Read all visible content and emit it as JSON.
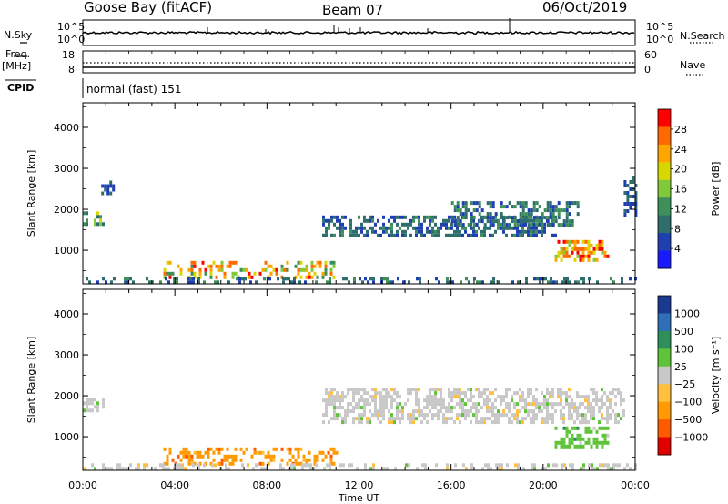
{
  "header": {
    "radar": "Goose Bay (fitACF)",
    "beam": "Beam 07",
    "date": "06/Oct/2019"
  },
  "strip": {
    "nsky_label": "N.Sky",
    "nsearch_label": "N.Search",
    "freq_label_1": "Freq.",
    "freq_label_2": "[MHz]",
    "nave_label": "Nave",
    "cpid_label": "CPID",
    "cpid_value": "normal (fast) 151",
    "nsky_ticks": [
      "10^5",
      "10^0"
    ],
    "nsearch_ticks": [
      "10^5",
      "10^0"
    ],
    "freq_ticks": [
      "18",
      "8"
    ],
    "nave_ticks": [
      "60",
      "0"
    ]
  },
  "colors": {
    "power": [
      "#1a1aff",
      "#1f3fb0",
      "#2e6f6e",
      "#3e8f5a",
      "#7fc93a",
      "#d8d800",
      "#ffa500",
      "#ff6a00",
      "#ff0000"
    ],
    "velocity": [
      "#1a3a8f",
      "#2e6fb5",
      "#2f8f5a",
      "#5fc43a",
      "#c8c8c8",
      "#ffc040",
      "#ff9a00",
      "#ff5a00",
      "#e00000"
    ]
  },
  "chart_data": [
    {
      "type": "heatmap",
      "name": "power",
      "ylabel": "Slant Range [km]",
      "ylim": [
        180,
        4600
      ],
      "yticks": [
        1000,
        2000,
        3000,
        4000
      ],
      "colorbar_label": "Power [dB]",
      "colorbar_ticks": [
        4,
        8,
        12,
        16,
        20,
        24,
        28
      ],
      "colorbar_range": [
        0,
        32
      ],
      "features": [
        {
          "t0": 0.0,
          "t1": 0.9,
          "r0": 1650,
          "r1": 1950,
          "v0": 8,
          "v1": 20
        },
        {
          "t0": 0.8,
          "t1": 1.3,
          "r0": 2350,
          "r1": 2700,
          "v0": 4,
          "v1": 10
        },
        {
          "t0": 3.5,
          "t1": 11.0,
          "r0": 380,
          "r1": 740,
          "v0": 12,
          "v1": 30
        },
        {
          "t0": 10.4,
          "t1": 20.5,
          "r0": 1350,
          "r1": 1850,
          "v0": 4,
          "v1": 12
        },
        {
          "t0": 16.0,
          "t1": 21.5,
          "r0": 1650,
          "r1": 2200,
          "v0": 4,
          "v1": 14
        },
        {
          "t0": 20.5,
          "t1": 22.8,
          "r0": 800,
          "r1": 1250,
          "v0": 16,
          "v1": 30
        },
        {
          "t0": 23.5,
          "t1": 24.0,
          "r0": 1900,
          "r1": 2800,
          "v0": 4,
          "v1": 10
        },
        {
          "t0": 0.0,
          "t1": 24.0,
          "r0": 180,
          "r1": 350,
          "v0": 4,
          "v1": 12
        }
      ]
    },
    {
      "type": "heatmap",
      "name": "velocity",
      "xlabel": "Time UT",
      "ylabel": "Slant Range [km]",
      "ylim": [
        180,
        4600
      ],
      "yticks": [
        1000,
        2000,
        3000,
        4000
      ],
      "xlim": [
        0,
        24
      ],
      "xticks": [
        "00:00",
        "04:00",
        "08:00",
        "12:00",
        "16:00",
        "20:00",
        "00:00"
      ],
      "colorbar_label": "Velocity [m s⁻¹]",
      "colorbar_ticks": [
        "1000",
        "500",
        "100",
        "25",
        "−25",
        "−100",
        "−500",
        "−1000"
      ],
      "features": [
        {
          "t0": 0.0,
          "t1": 0.9,
          "r0": 1650,
          "r1": 1950,
          "v": "25"
        },
        {
          "t0": 3.5,
          "t1": 11.0,
          "r0": 380,
          "r1": 740,
          "v": "-100"
        },
        {
          "t0": 10.4,
          "t1": 23.5,
          "r0": 1350,
          "r1": 2200,
          "v": "25"
        },
        {
          "t0": 20.5,
          "t1": 22.8,
          "r0": 800,
          "r1": 1250,
          "v": "100"
        },
        {
          "t0": 0.0,
          "t1": 24.0,
          "r0": 180,
          "r1": 350,
          "v": "25"
        }
      ]
    }
  ]
}
